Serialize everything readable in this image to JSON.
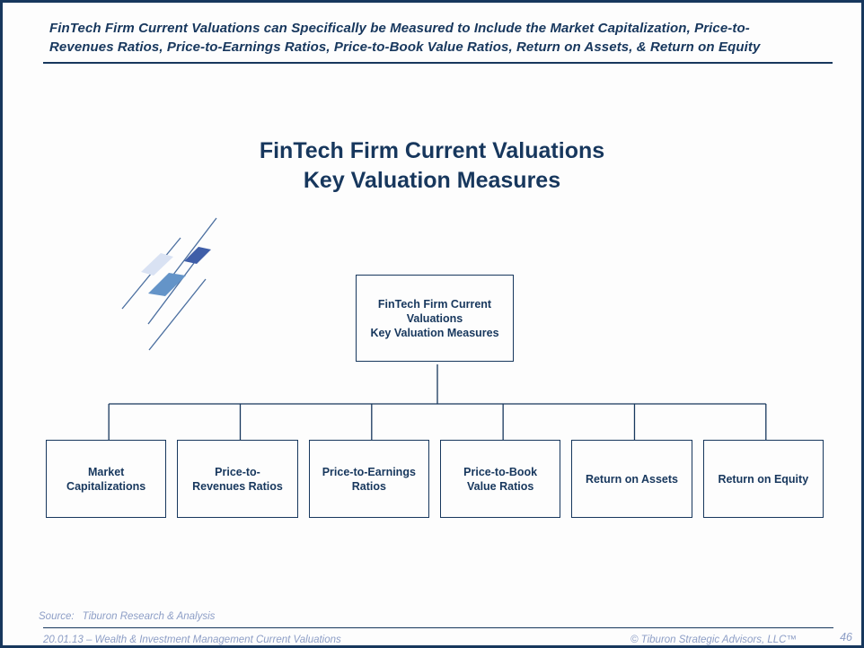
{
  "colors": {
    "navy": "#17375d",
    "muted_blue": "#8d9ec6",
    "background": "#fdfdfd",
    "mark_line_blue": "#4a6e9f",
    "mark_diamond_pale": "#d9e2f3",
    "mark_diamond_medium": "#6494c8",
    "mark_diamond_dark": "#3f5ea8"
  },
  "header": {
    "line1": "FinTech Firm Current Valuations can Specifically be Measured to Include the Market Capitalization, Price-to-",
    "line2": "Revenues Ratios, Price-to-Earnings Ratios, Price-to-Book Value Ratios, Return on Assets, & Return on Equity"
  },
  "title": {
    "line1": "FinTech Firm Current Valuations",
    "line2": "Key Valuation Measures"
  },
  "decor": {
    "mark_icon": "diagonal-lines-and-diamonds-logo-mark"
  },
  "diagram": {
    "root": {
      "lines": [
        "FinTech Firm Current",
        "Valuations",
        "Key Valuation Measures"
      ]
    },
    "children": [
      {
        "lines": [
          "Market",
          "Capitalizations"
        ]
      },
      {
        "lines": [
          "Price-to-",
          "Revenues Ratios"
        ]
      },
      {
        "lines": [
          "Price-to-Earnings",
          "Ratios"
        ]
      },
      {
        "lines": [
          "Price-to-Book",
          "Value Ratios"
        ]
      },
      {
        "lines": [
          "Return on Assets"
        ]
      },
      {
        "lines": [
          "Return on Equity"
        ]
      }
    ]
  },
  "footer": {
    "source_label": "Source:",
    "source_text": "Tiburon Research & Analysis",
    "left": "20.01.13 – Wealth & Investment Management Current Valuations",
    "right": "© Tiburon Strategic Advisors, LLC™",
    "page": "46"
  }
}
